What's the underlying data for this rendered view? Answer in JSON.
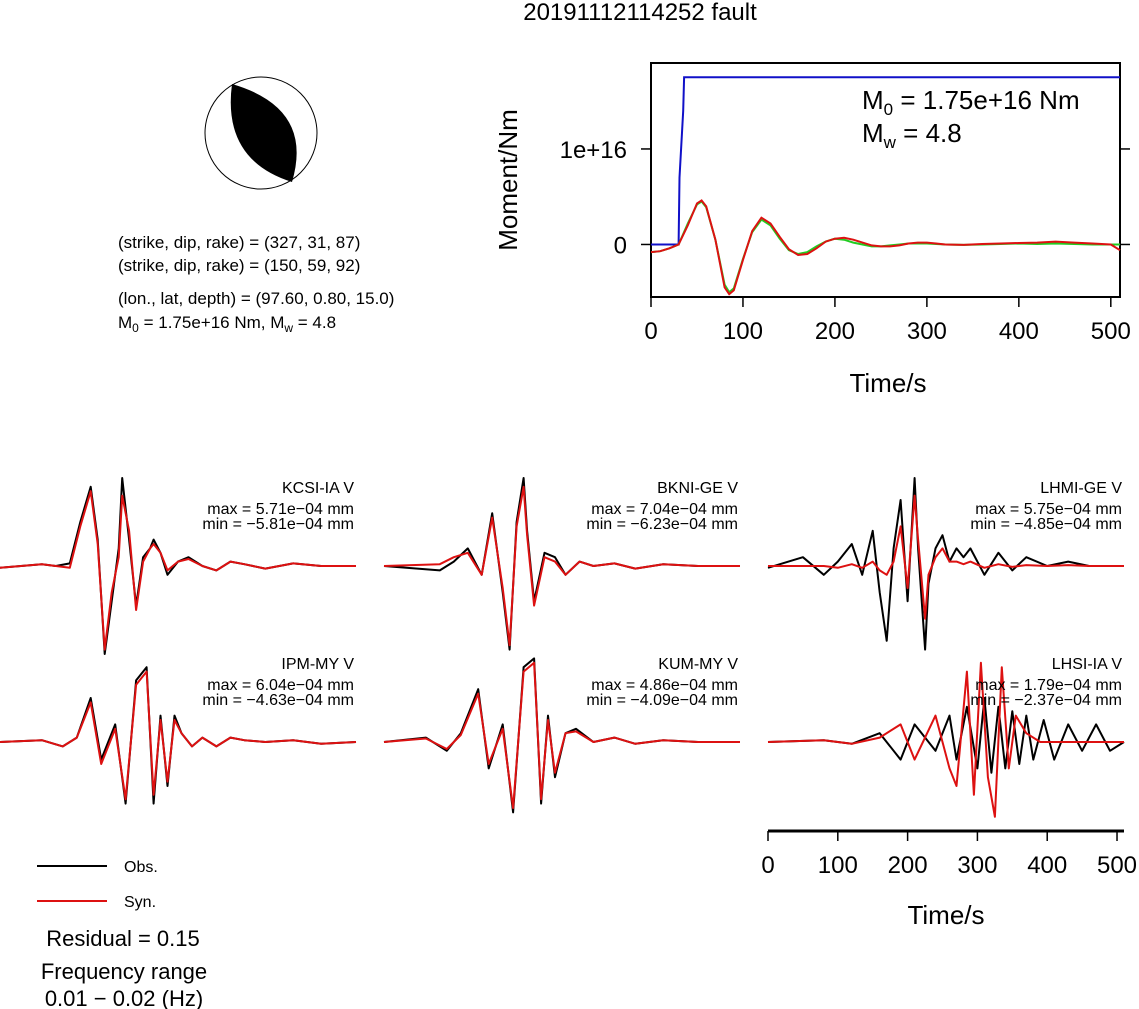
{
  "title": "20191112114252 fault",
  "mechanism": {
    "plane1": "(strike, dip, rake) = (327, 31, 87)",
    "plane2": "(strike, dip, rake) = (150, 59, 92)",
    "location": "(lon., lat, depth) = (97.60, 0.80, 15.0)",
    "moment_sym": "M",
    "moment_sub": "0",
    "moment_rest": " = 1.75e+16 Nm, M",
    "mw_sub": "w",
    "mw_rest": " = 4.8"
  },
  "chart_data": [
    {
      "type": "line",
      "title": "",
      "xlabel": "Time/s",
      "ylabel": "Moment/Nm",
      "xlim": [
        0,
        510
      ],
      "ylim": [
        -5500000000000000.0,
        1.9e+16
      ],
      "xticks": [
        0,
        100,
        200,
        300,
        400,
        500
      ],
      "yticks": [
        {
          "value": 0,
          "label": "0"
        },
        {
          "value": 1e+16,
          "label": "1e+16"
        }
      ],
      "annotation": {
        "m0_sym": "M",
        "m0_sub": "0",
        "m0_rest": " = 1.75e+16 Nm",
        "mw_sym": "M",
        "mw_sub": "w",
        "mw_rest": " = 4.8"
      },
      "series": [
        {
          "color": "#1010c8",
          "x": [
            0,
            30,
            31,
            35,
            36,
            510
          ],
          "y": [
            0,
            0,
            7000000000000000.0,
            1.4e+16,
            1.75e+16,
            1.75e+16
          ]
        },
        {
          "color": "#22cc22",
          "x": [
            0,
            10,
            20,
            30,
            40,
            50,
            55,
            60,
            70,
            80,
            85,
            90,
            100,
            110,
            120,
            130,
            140,
            150,
            160,
            170,
            180,
            190,
            200,
            210,
            220,
            230,
            240,
            250,
            260,
            270,
            280,
            290,
            300,
            310,
            320,
            340,
            360,
            380,
            400,
            420,
            440,
            460,
            480,
            500,
            510
          ],
          "y": [
            -800000000000000.0,
            -700000000000000.0,
            -400000000000000.0,
            0,
            2200000000000000.0,
            4200000000000000.0,
            4500000000000000.0,
            3900000000000000.0,
            500000000000000.0,
            -4200000000000000.0,
            -5000000000000000.0,
            -4600000000000000.0,
            -1500000000000000.0,
            1300000000000000.0,
            2600000000000000.0,
            2000000000000000.0,
            600000000000000.0,
            -600000000000000.0,
            -1000000000000000.0,
            -800000000000000.0,
            -200000000000000.0,
            300000000000000.0,
            600000000000000.0,
            500000000000000.0,
            200000000000000.0,
            0,
            -200000000000000.0,
            -200000000000000.0,
            -100000000000000.0,
            0,
            100000000000000.0,
            100000000000000.0,
            100000000000000.0,
            50000000000000.0,
            0,
            -50000000000000.0,
            0,
            50000000000000.0,
            100000000000000.0,
            50000000000000.0,
            100000000000000.0,
            50000000000000.0,
            0,
            0,
            0
          ]
        },
        {
          "color": "#dd1111",
          "x": [
            0,
            10,
            20,
            30,
            40,
            50,
            55,
            60,
            70,
            80,
            85,
            90,
            100,
            110,
            120,
            130,
            140,
            150,
            160,
            170,
            180,
            190,
            200,
            210,
            220,
            230,
            240,
            250,
            260,
            270,
            280,
            290,
            300,
            310,
            320,
            340,
            360,
            380,
            400,
            420,
            440,
            460,
            480,
            500,
            510
          ],
          "y": [
            -800000000000000.0,
            -700000000000000.0,
            -400000000000000.0,
            0,
            2000000000000000.0,
            4300000000000000.0,
            4600000000000000.0,
            4000000000000000.0,
            500000000000000.0,
            -4500000000000000.0,
            -5200000000000000.0,
            -4800000000000000.0,
            -1600000000000000.0,
            1400000000000000.0,
            2800000000000000.0,
            2200000000000000.0,
            800000000000000.0,
            -500000000000000.0,
            -1100000000000000.0,
            -1000000000000000.0,
            -400000000000000.0,
            300000000000000.0,
            600000000000000.0,
            700000000000000.0,
            500000000000000.0,
            200000000000000.0,
            -100000000000000.0,
            -200000000000000.0,
            -200000000000000.0,
            -100000000000000.0,
            100000000000000.0,
            200000000000000.0,
            200000000000000.0,
            100000000000000.0,
            0,
            -50000000000000.0,
            50000000000000.0,
            100000000000000.0,
            150000000000000.0,
            200000000000000.0,
            300000000000000.0,
            200000000000000.0,
            100000000000000.0,
            0,
            -600000000000000.0
          ]
        }
      ]
    },
    {
      "type": "line",
      "title": "",
      "xlabel": "Time/s",
      "xlim": [
        0,
        510
      ],
      "xticks": [
        0,
        100,
        200,
        300,
        400,
        500
      ],
      "legend": {
        "obs": "Obs.",
        "syn": "Syn.",
        "position": "bottom-left"
      },
      "stations": [
        {
          "name": "KCSI-IA V",
          "max": "max = 5.71e−04 mm",
          "min": "min = −5.81e−04 mm",
          "obs": {
            "t": [
              0,
              60,
              80,
              100,
              115,
              130,
              140,
              150,
              160,
              170,
              175,
              185,
              195,
              205,
              215,
              220,
              230,
              240,
              255,
              270,
              290,
              310,
              330,
              350,
              380,
              420,
              460,
              510
            ],
            "a": [
              -0.02,
              0.02,
              0,
              0.03,
              0.5,
              0.9,
              0.3,
              -1.0,
              -0.4,
              0.2,
              1.0,
              0.3,
              -0.45,
              0.1,
              0.2,
              0.3,
              0.15,
              -0.1,
              0.05,
              0.1,
              0,
              -0.05,
              0.05,
              0.02,
              -0.03,
              0.03,
              0,
              0
            ]
          },
          "syn": {
            "t": [
              0,
              60,
              80,
              100,
              115,
              130,
              140,
              150,
              160,
              170,
              175,
              185,
              195,
              205,
              215,
              220,
              230,
              240,
              255,
              270,
              290,
              310,
              330,
              350,
              380,
              420,
              460,
              510
            ],
            "a": [
              -0.02,
              0.02,
              0,
              -0.02,
              0.45,
              0.85,
              0.25,
              -0.95,
              -0.3,
              0.1,
              0.8,
              0.4,
              -0.5,
              0.05,
              0.2,
              0.25,
              0.15,
              -0.05,
              0.05,
              0.08,
              0,
              -0.05,
              0.05,
              0.02,
              -0.03,
              0.03,
              0,
              0
            ]
          }
        },
        {
          "name": "BKNI-GE V",
          "max": "max = 7.04e−04 mm",
          "min": "min = −6.23e−04 mm",
          "obs": {
            "t": [
              0,
              80,
              100,
              120,
              140,
              155,
              170,
              180,
              190,
              200,
              205,
              215,
              230,
              245,
              260,
              280,
              300,
              330,
              360,
              400,
              450,
              510
            ],
            "a": [
              0,
              -0.05,
              0.05,
              0.2,
              -0.1,
              0.6,
              -0.3,
              -0.95,
              0.5,
              1.0,
              0.4,
              -0.4,
              0.15,
              0.1,
              -0.1,
              0.05,
              0,
              0.03,
              -0.03,
              0.02,
              0,
              0
            ]
          },
          "syn": {
            "t": [
              0,
              80,
              100,
              120,
              140,
              155,
              170,
              180,
              190,
              200,
              205,
              215,
              230,
              245,
              260,
              280,
              300,
              330,
              360,
              400,
              450,
              510
            ],
            "a": [
              0,
              0.02,
              0.1,
              0.15,
              -0.1,
              0.55,
              -0.25,
              -0.9,
              0.45,
              0.9,
              0.35,
              -0.45,
              0.1,
              0.05,
              -0.1,
              0.05,
              0,
              0.03,
              -0.03,
              0.02,
              0,
              0
            ]
          }
        },
        {
          "name": "LHMI-GE V",
          "max": "max = 5.75e−04 mm",
          "min": "min = −4.85e−04 mm",
          "obs": {
            "t": [
              0,
              50,
              80,
              100,
              120,
              135,
              150,
              160,
              170,
              180,
              190,
              200,
              210,
              215,
              225,
              230,
              240,
              250,
              260,
              270,
              280,
              290,
              310,
              330,
              350,
              370,
              400,
              430,
              460,
              510
            ],
            "a": [
              -0.02,
              0.1,
              -0.1,
              0.05,
              0.25,
              -0.1,
              0.4,
              -0.3,
              -0.85,
              0.2,
              0.75,
              -0.4,
              1.0,
              0.2,
              -0.95,
              -0.2,
              0.2,
              0.35,
              0.05,
              0.2,
              0.1,
              0.2,
              -0.1,
              0.15,
              -0.05,
              0.1,
              0,
              0.05,
              0,
              0
            ]
          },
          "syn": {
            "t": [
              0,
              50,
              80,
              100,
              120,
              135,
              150,
              160,
              170,
              180,
              190,
              200,
              210,
              215,
              225,
              230,
              240,
              250,
              260,
              270,
              280,
              290,
              310,
              330,
              350,
              370,
              400,
              430,
              460,
              510
            ],
            "a": [
              0,
              0,
              0,
              -0.02,
              0.02,
              -0.02,
              0.05,
              -0.05,
              -0.1,
              0.05,
              0.45,
              -0.25,
              0.8,
              0.3,
              -0.6,
              -0.1,
              0.1,
              0.2,
              0.05,
              0.05,
              0.02,
              0.05,
              -0.02,
              0.02,
              -0.01,
              0.01,
              0,
              0.01,
              0,
              0
            ]
          }
        },
        {
          "name": "IPM-MY V",
          "max": "max = 6.04e−04 mm",
          "min": "min = −4.63e−04 mm",
          "obs": {
            "t": [
              0,
              60,
              90,
              110,
              130,
              145,
              165,
              180,
              195,
              210,
              220,
              230,
              240,
              250,
              260,
              275,
              290,
              310,
              330,
              350,
              380,
              420,
              460,
              510
            ],
            "a": [
              0,
              0.02,
              -0.05,
              0.05,
              0.5,
              -0.2,
              0.2,
              -0.7,
              0.7,
              0.85,
              -0.7,
              0.3,
              -0.5,
              0.3,
              0.1,
              -0.05,
              0.05,
              -0.05,
              0.05,
              0.02,
              0,
              0.02,
              -0.02,
              0
            ]
          },
          "syn": {
            "t": [
              0,
              60,
              90,
              110,
              130,
              145,
              165,
              180,
              195,
              210,
              220,
              230,
              240,
              250,
              260,
              275,
              290,
              310,
              330,
              350,
              380,
              420,
              460,
              510
            ],
            "a": [
              0,
              0.02,
              -0.05,
              0.05,
              0.45,
              -0.25,
              0.15,
              -0.65,
              0.65,
              0.8,
              -0.6,
              0.25,
              -0.45,
              0.25,
              0.1,
              -0.05,
              0.05,
              -0.05,
              0.05,
              0.02,
              0,
              0.02,
              -0.02,
              0
            ]
          }
        },
        {
          "name": "KUM-MY V",
          "max": "max = 4.86e−04 mm",
          "min": "min = −4.09e−04 mm",
          "obs": {
            "t": [
              0,
              60,
              90,
              110,
              135,
              150,
              170,
              185,
              200,
              215,
              225,
              235,
              245,
              260,
              275,
              300,
              330,
              360,
              400,
              450,
              510
            ],
            "a": [
              0,
              0.05,
              -0.1,
              0.1,
              0.6,
              -0.3,
              0.2,
              -0.8,
              0.85,
              0.95,
              -0.7,
              0.3,
              -0.4,
              0.1,
              0.15,
              0,
              0.05,
              -0.02,
              0.02,
              0,
              0
            ]
          },
          "syn": {
            "t": [
              0,
              60,
              90,
              110,
              135,
              150,
              170,
              185,
              200,
              215,
              225,
              235,
              245,
              260,
              275,
              300,
              330,
              360,
              400,
              450,
              510
            ],
            "a": [
              0,
              0.04,
              -0.08,
              0.08,
              0.55,
              -0.25,
              0.15,
              -0.75,
              0.8,
              0.9,
              -0.65,
              0.25,
              -0.35,
              0.1,
              0.12,
              0,
              0.05,
              -0.02,
              0.02,
              0,
              0
            ]
          }
        },
        {
          "name": "LHSI-IA V",
          "max": "max = 1.79e−04 mm",
          "min": "min = −2.37e−04 mm",
          "obs": {
            "t": [
              0,
              80,
              120,
              160,
              190,
              210,
              240,
              260,
              270,
              285,
              300,
              310,
              320,
              330,
              340,
              350,
              360,
              370,
              380,
              395,
              410,
              430,
              450,
              470,
              490,
              510
            ],
            "a": [
              0,
              0.02,
              -0.02,
              0.1,
              -0.2,
              0.2,
              -0.1,
              0.3,
              -0.2,
              0.4,
              -0.3,
              0.5,
              -0.35,
              0.4,
              -0.3,
              0.35,
              -0.25,
              0.3,
              -0.2,
              0.25,
              -0.2,
              0.2,
              -0.1,
              0.2,
              -0.1,
              0
            ]
          },
          "syn": {
            "t": [
              0,
              80,
              120,
              160,
              190,
              210,
              240,
              260,
              270,
              285,
              295,
              305,
              315,
              325,
              335,
              345,
              355,
              370,
              390,
              420,
              460,
              510
            ],
            "a": [
              0,
              0.02,
              -0.02,
              0.05,
              0.2,
              -0.2,
              0.3,
              -0.3,
              -0.5,
              0.8,
              -0.6,
              0.9,
              -0.4,
              -0.85,
              0.85,
              -0.3,
              0.3,
              0.1,
              0,
              0,
              0,
              0
            ]
          }
        }
      ]
    }
  ],
  "residual": "Residual = 0.15",
  "freq_label": "Frequency range",
  "freq_value": "0.01 − 0.02 (Hz)"
}
